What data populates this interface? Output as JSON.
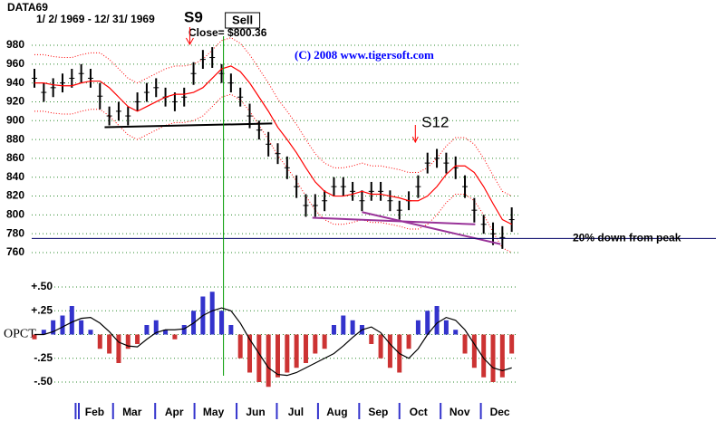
{
  "chart_data": [
    {
      "type": "ohlc",
      "title": "DATA69",
      "subtitle": "1/ 2/ 1969 -  12/ 31/ 1969",
      "close_label": "Close= $800.36",
      "copyright": "(C) 2008  www.tigersoft.com",
      "xlim": [
        0,
        52
      ],
      "ylim": [
        760,
        980
      ],
      "yticks": [
        760,
        780,
        800,
        820,
        840,
        860,
        880,
        900,
        920,
        940,
        960,
        980
      ],
      "grid": true,
      "color": "#000000",
      "high": [
        955,
        940,
        945,
        950,
        955,
        960,
        955,
        940,
        915,
        920,
        915,
        930,
        940,
        945,
        935,
        930,
        935,
        962,
        975,
        978,
        960,
        950,
        935,
        918,
        900,
        888,
        876,
        862,
        842,
        822,
        822,
        826,
        840,
        840,
        835,
        826,
        835,
        835,
        826,
        815,
        825,
        842,
        866,
        870,
        866,
        862,
        842,
        818,
        800,
        792,
        788,
        808
      ],
      "low": [
        935,
        920,
        925,
        930,
        935,
        940,
        935,
        912,
        895,
        900,
        895,
        910,
        920,
        925,
        915,
        910,
        915,
        938,
        955,
        956,
        940,
        930,
        915,
        892,
        880,
        862,
        854,
        838,
        818,
        798,
        798,
        804,
        820,
        820,
        815,
        804,
        815,
        815,
        804,
        795,
        805,
        818,
        844,
        850,
        844,
        838,
        818,
        792,
        780,
        768,
        764,
        782
      ],
      "ma": [
        940,
        940,
        938,
        937,
        937,
        940,
        942,
        942,
        935,
        925,
        915,
        910,
        915,
        920,
        925,
        928,
        928,
        930,
        935,
        945,
        955,
        958,
        952,
        940,
        925,
        910,
        893,
        880,
        866,
        850,
        835,
        825,
        820,
        820,
        822,
        825,
        822,
        822,
        820,
        818,
        815,
        815,
        820,
        830,
        843,
        852,
        852,
        845,
        830,
        812,
        795,
        790
      ],
      "ma_color": "#ff0000",
      "upper_band": [
        970,
        970,
        968,
        967,
        967,
        970,
        972,
        972,
        965,
        955,
        945,
        940,
        945,
        950,
        955,
        958,
        958,
        960,
        965,
        975,
        985,
        988,
        982,
        970,
        955,
        940,
        923,
        910,
        896,
        880,
        865,
        855,
        850,
        850,
        852,
        855,
        852,
        852,
        850,
        848,
        845,
        845,
        850,
        860,
        873,
        882,
        882,
        875,
        860,
        842,
        825,
        820
      ],
      "lower_band": [
        910,
        910,
        908,
        907,
        907,
        910,
        912,
        912,
        905,
        895,
        885,
        880,
        885,
        890,
        895,
        898,
        898,
        900,
        905,
        915,
        925,
        928,
        922,
        910,
        895,
        880,
        863,
        850,
        836,
        820,
        805,
        795,
        790,
        790,
        792,
        795,
        792,
        792,
        790,
        788,
        785,
        785,
        790,
        800,
        813,
        822,
        822,
        815,
        800,
        782,
        765,
        760
      ],
      "band_color": "#ff0000",
      "trendlines": [
        {
          "x": [
            7.5,
            25.4
          ],
          "y": [
            893,
            897
          ],
          "color": "#000000"
        },
        {
          "x": [
            29.7,
            47.1
          ],
          "y": [
            797,
            790
          ],
          "color": "#993399"
        },
        {
          "x": [
            35,
            49.8
          ],
          "y": [
            803,
            769
          ],
          "color": "#993399"
        }
      ],
      "hline": {
        "value": 775,
        "label": "20% down from peak",
        "color": "#000066"
      },
      "signals": [
        {
          "label": "Sell",
          "x": 20.2,
          "color": "#009900"
        },
        {
          "label": "S9",
          "x": 16.6,
          "color": "#ff0000"
        },
        {
          "label": "S12",
          "x": 40.7,
          "color": "#ff0000"
        }
      ]
    },
    {
      "type": "bar",
      "xlim": [
        0,
        52
      ],
      "ylim": [
        -0.5,
        0.5
      ],
      "yticks": [
        {
          "value": -0.5,
          "label": "-.50"
        },
        {
          "value": -0.25,
          "label": "-.25"
        },
        {
          "value": 0,
          "label": "OPCT"
        },
        {
          "value": 0.25,
          "label": "+.25"
        },
        {
          "value": 0.5,
          "label": "+.50"
        }
      ],
      "grid": true,
      "positive_color": "#3333cc",
      "negative_color": "#cc3333",
      "values": [
        -0.05,
        0.05,
        0.15,
        0.2,
        0.3,
        0.15,
        0.05,
        -0.15,
        -0.2,
        -0.3,
        -0.15,
        -0.1,
        0.1,
        0.15,
        0.05,
        -0.05,
        0.1,
        0.25,
        0.4,
        0.45,
        0.25,
        0.1,
        -0.25,
        -0.4,
        -0.5,
        -0.55,
        -0.45,
        -0.4,
        -0.35,
        -0.3,
        -0.2,
        -0.15,
        0.1,
        0.2,
        0.15,
        0.1,
        -0.1,
        -0.25,
        -0.35,
        -0.4,
        -0.15,
        0.15,
        0.25,
        0.3,
        0.15,
        0.05,
        -0.2,
        -0.35,
        -0.45,
        -0.5,
        -0.45,
        -0.2
      ],
      "signal": [
        0,
        0,
        0.03,
        0.08,
        0.13,
        0.17,
        0.18,
        0.12,
        0.03,
        -0.08,
        -0.12,
        -0.13,
        -0.05,
        0.02,
        0.05,
        0.05,
        0.06,
        0.12,
        0.2,
        0.25,
        0.28,
        0.25,
        0.12,
        -0.05,
        -0.2,
        -0.35,
        -0.42,
        -0.43,
        -0.4,
        -0.35,
        -0.3,
        -0.25,
        -0.2,
        -0.12,
        -0.03,
        0.05,
        0.08,
        0.02,
        -0.1,
        -0.2,
        -0.25,
        -0.15,
        0,
        0.12,
        0.18,
        0.15,
        0.05,
        -0.1,
        -0.25,
        -0.35,
        -0.38,
        -0.35
      ],
      "signal_color": "#000000",
      "xticks": [
        {
          "value": 4.4,
          "label": "Feb"
        },
        {
          "value": 8.4,
          "label": "Mar"
        },
        {
          "value": 12.9,
          "label": "Apr"
        },
        {
          "value": 17.1,
          "label": "May"
        },
        {
          "value": 21.6,
          "label": "Jun"
        },
        {
          "value": 25.9,
          "label": "Jul"
        },
        {
          "value": 30.3,
          "label": "Aug"
        },
        {
          "value": 34.7,
          "label": "Sep"
        },
        {
          "value": 39,
          "label": "Oct"
        },
        {
          "value": 43.4,
          "label": "Nov"
        },
        {
          "value": 47.7,
          "label": "Dec"
        }
      ],
      "xtick_color": "#3333cc"
    }
  ]
}
